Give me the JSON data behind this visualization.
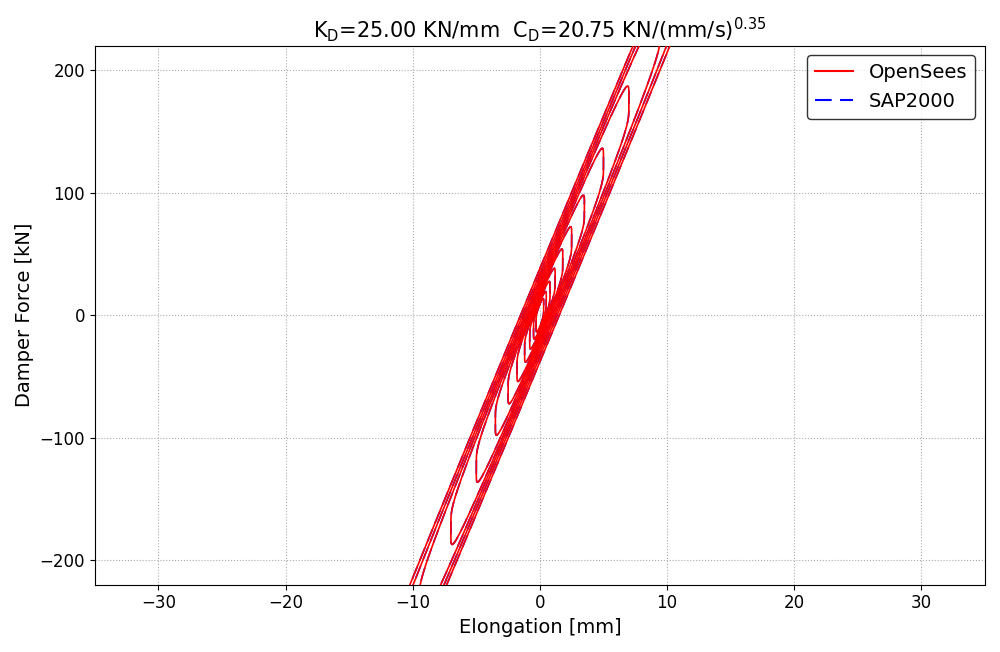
{
  "title_latex": "K$_D$=25.00 KN/mm  C$_D$=20.75 KN/(mm/s)$^{0.35}$",
  "xlabel": "Elongation [mm]",
  "ylabel": "Damper Force [kN]",
  "xlim": [
    -35,
    35
  ],
  "ylim": [
    -220,
    220
  ],
  "xticks": [
    -30,
    -20,
    -10,
    0,
    10,
    20,
    30
  ],
  "yticks": [
    -200,
    -100,
    0,
    100,
    200
  ],
  "opensees_color": "#ff0000",
  "sap2000_color": "#0000ff",
  "KD": 25.0,
  "CD": 20.75,
  "alpha": 0.35,
  "amplitudes": [
    0.3,
    0.5,
    0.8,
    1.2,
    1.8,
    2.5,
    3.5,
    5.0,
    7.0,
    9.5,
    13.0,
    18.0
  ],
  "freq": 0.05,
  "n_points": 1000,
  "background_color": "#ffffff",
  "grid_color": "#888888",
  "legend_fontsize": 14,
  "axis_fontsize": 14,
  "title_fontsize": 15
}
